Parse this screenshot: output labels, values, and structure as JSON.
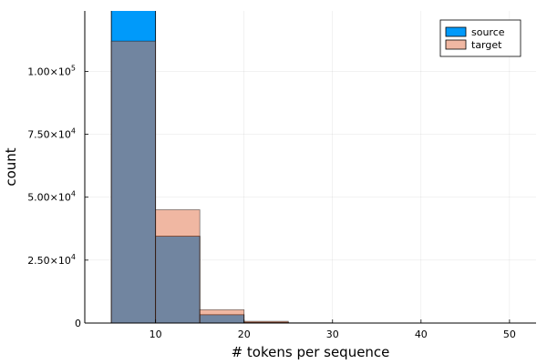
{
  "chart_data": {
    "type": "bar",
    "subtype": "overlapping-histogram",
    "title": "",
    "xlabel": "# tokens per sequence",
    "ylabel": "count",
    "xlim": [
      2,
      53
    ],
    "ylim": [
      0,
      124000
    ],
    "grid": true,
    "legend_position": "top-right",
    "bins": [
      [
        5,
        10
      ],
      [
        10,
        15
      ],
      [
        15,
        20
      ],
      [
        20,
        25
      ],
      [
        25,
        30
      ],
      [
        30,
        35
      ],
      [
        35,
        40
      ],
      [
        40,
        45
      ],
      [
        45,
        50
      ]
    ],
    "series": [
      {
        "name": "source",
        "color": "#009AFA",
        "opacity": 1.0,
        "values": [
          125000,
          34500,
          3300,
          300,
          40,
          10,
          5,
          2,
          1
        ]
      },
      {
        "name": "target",
        "color": "#E26F46",
        "opacity": 0.5,
        "values": [
          112000,
          45000,
          5300,
          700,
          90,
          20,
          8,
          3,
          1
        ]
      }
    ],
    "x_ticks": [
      {
        "value": 10,
        "label": "10"
      },
      {
        "value": 20,
        "label": "20"
      },
      {
        "value": 30,
        "label": "30"
      },
      {
        "value": 40,
        "label": "40"
      },
      {
        "value": 50,
        "label": "50"
      }
    ],
    "y_ticks": [
      {
        "value": 0,
        "label": "0",
        "exp": ""
      },
      {
        "value": 25000,
        "label": "2.50×10",
        "exp": "4"
      },
      {
        "value": 50000,
        "label": "5.00×10",
        "exp": "4"
      },
      {
        "value": 75000,
        "label": "7.50×10",
        "exp": "4"
      },
      {
        "value": 100000,
        "label": "1.00×10",
        "exp": "5"
      }
    ]
  }
}
